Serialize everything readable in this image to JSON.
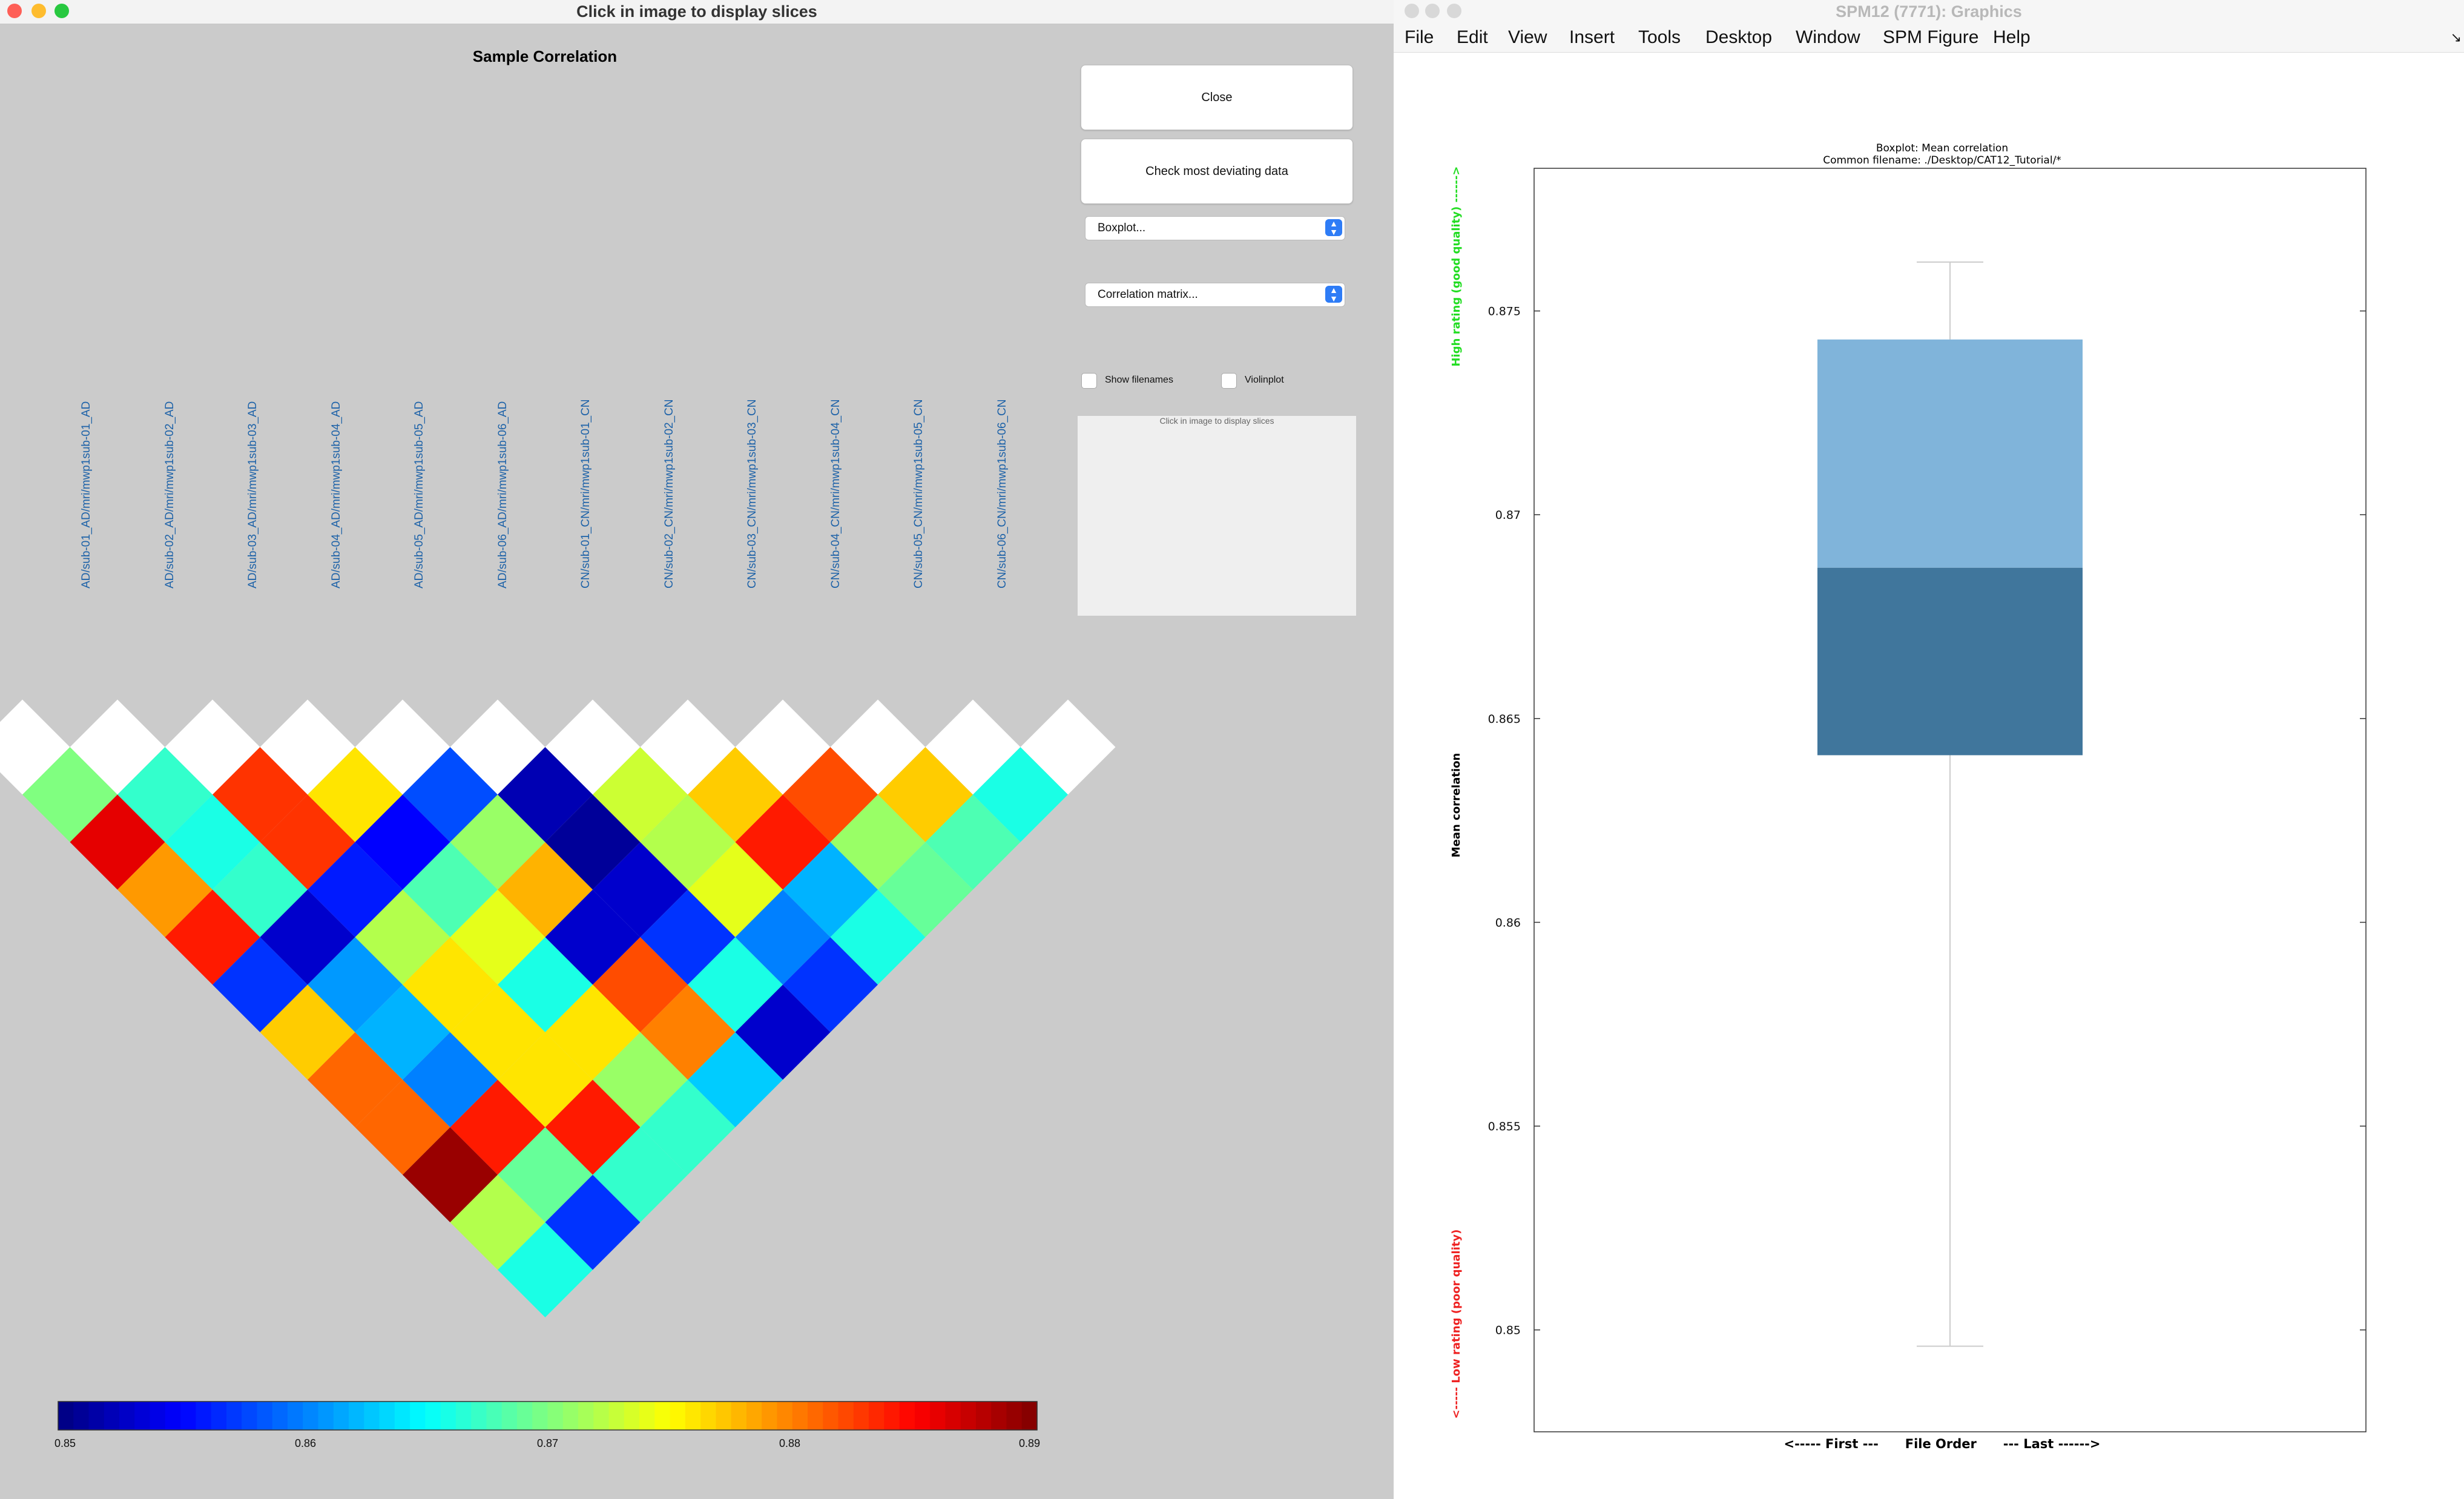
{
  "left_window": {
    "title": "Click in image to display slices",
    "plot_title": "Sample Correlation",
    "buttons": {
      "close": "Close",
      "check": "Check most deviating data"
    },
    "popups": {
      "boxplot": "Boxplot...",
      "matrix": "Correlation matrix..."
    },
    "checkboxes": {
      "show_filenames": "Show filenames",
      "violinplot": "Violinplot"
    },
    "preview_caption": "Click in image to display slices",
    "file_labels": [
      "AD/sub-01_AD/mri/mwp1sub-01_AD",
      "AD/sub-02_AD/mri/mwp1sub-02_AD",
      "AD/sub-03_AD/mri/mwp1sub-03_AD",
      "AD/sub-04_AD/mri/mwp1sub-04_AD",
      "AD/sub-05_AD/mri/mwp1sub-05_AD",
      "AD/sub-06_AD/mri/mwp1sub-06_AD",
      "CN/sub-01_CN/mri/mwp1sub-01_CN",
      "CN/sub-02_CN/mri/mwp1sub-02_CN",
      "CN/sub-03_CN/mri/mwp1sub-03_CN",
      "CN/sub-04_CN/mri/mwp1sub-04_CN",
      "CN/sub-05_CN/mri/mwp1sub-05_CN",
      "CN/sub-06_CN/mri/mwp1sub-06_CN"
    ],
    "colorbar": {
      "min": 0.85,
      "max": 0.89,
      "ticks": [
        "0.85",
        "0.86",
        "0.87",
        "0.88",
        "0.89"
      ]
    }
  },
  "right_window": {
    "title": "SPM12 (7771): Graphics",
    "menu": [
      "File",
      "Edit",
      "View",
      "Insert",
      "Tools",
      "Desktop",
      "Window",
      "SPM Figure",
      "Help"
    ],
    "menu_corner": "↘"
  },
  "chart_data": [
    {
      "type": "heatmap",
      "title": "Sample Correlation",
      "layout": "lower triangle, rotated 45°",
      "colormap": "jet",
      "clim": [
        0.85,
        0.89
      ],
      "row_labels_ref": "left_window.file_labels",
      "diagonal": "white",
      "offdiagonal": [
        [
          0.87,
          0.867,
          0.883,
          0.876,
          0.858,
          0.852,
          0.873,
          0.877,
          0.882,
          0.877,
          0.866
        ],
        [
          0.886,
          0.866,
          0.883,
          0.855,
          0.871,
          0.851,
          0.872,
          0.884,
          0.871,
          0.868
        ],
        [
          0.879,
          0.867,
          0.856,
          0.868,
          0.878,
          0.853,
          0.874,
          0.862,
          0.869
        ],
        [
          0.884,
          0.853,
          0.872,
          0.874,
          0.853,
          0.857,
          0.86,
          0.866
        ],
        [
          0.857,
          0.861,
          0.876,
          0.866,
          0.882,
          0.866,
          0.857
        ],
        [
          0.877,
          0.862,
          0.876,
          0.876,
          0.88,
          0.853
        ],
        [
          0.881,
          0.86,
          0.876,
          0.871,
          0.863
        ],
        [
          0.881,
          0.884,
          0.884,
          0.867
        ],
        [
          0.889,
          0.869,
          0.867
        ],
        [
          0.872,
          0.857
        ],
        [
          0.866
        ]
      ],
      "colorbar_ticks": [
        "0.85",
        "0.86",
        "0.87",
        "0.88",
        "0.89"
      ]
    },
    {
      "type": "box",
      "title": "Boxplot: Mean correlation",
      "subtitle": "Common filename: ./Desktop/CAT12_Tutorial/*",
      "ylabel": "Mean correlation",
      "xlabel": "<----- First ---      File Order      --- Last ------>",
      "annotation_top": "High rating (good quality) ------>",
      "annotation_bottom": "<----- Low rating (poor quality)",
      "ylim": [
        0.8475,
        0.8785
      ],
      "yticks": [
        "0.85",
        "0.855",
        "0.86",
        "0.865",
        "0.87",
        "0.875"
      ],
      "box": {
        "min": 0.8496,
        "q1": 0.8641,
        "median": 0.8687,
        "q3": 0.8743,
        "max": 0.8762
      },
      "colors": {
        "upper": "#80b4da",
        "lower": "#40769c",
        "whisker": "#cccccc"
      }
    }
  ]
}
